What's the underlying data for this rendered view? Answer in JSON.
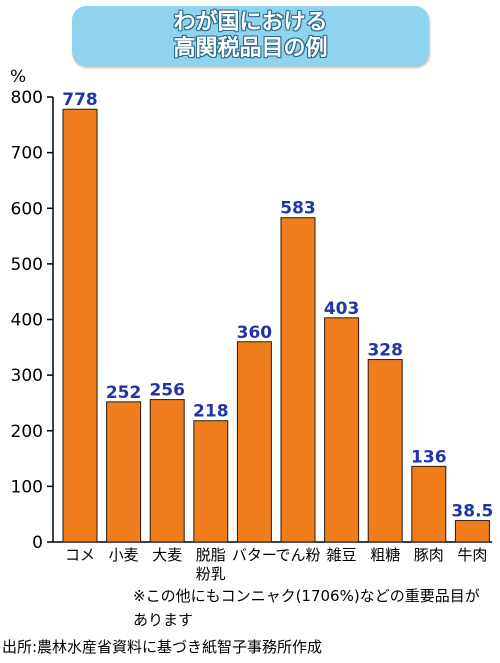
{
  "title": {
    "line1": "わが国における",
    "line2": "高関税品目の例"
  },
  "note": "※この他にもコンニャク(1706%)などの重要品目があります",
  "source": "出所:農林水産省資料に基づき紙智子事務所作成",
  "colors": {
    "bar": "#f07d1c",
    "bar_stroke": "#2a1a10",
    "value_label": "#2036a8",
    "title_box": "#8fd3ef"
  },
  "chart_data": {
    "type": "bar",
    "title": "わが国における高関税品目の例",
    "ylabel": "%",
    "xlabel": "",
    "ylim": [
      0,
      800
    ],
    "yticks": [
      0,
      100,
      200,
      300,
      400,
      500,
      600,
      700,
      800
    ],
    "grid": false,
    "categories": [
      "コメ",
      "小麦",
      "大麦",
      "脱脂粉乳",
      "バター",
      "でん粉",
      "雑豆",
      "粗糖",
      "豚肉",
      "牛肉"
    ],
    "category_lines": [
      [
        "コメ"
      ],
      [
        "小麦"
      ],
      [
        "大麦"
      ],
      [
        "脱脂",
        "粉乳"
      ],
      [
        "バター"
      ],
      [
        "でん粉"
      ],
      [
        "雑豆"
      ],
      [
        "粗糖"
      ],
      [
        "豚肉"
      ],
      [
        "牛肉"
      ]
    ],
    "values": [
      778,
      252,
      256,
      218,
      360,
      583,
      403,
      328,
      136,
      38.5
    ],
    "value_labels": [
      "778",
      "252",
      "256",
      "218",
      "360",
      "583",
      "403",
      "328",
      "136",
      "38.5"
    ]
  }
}
